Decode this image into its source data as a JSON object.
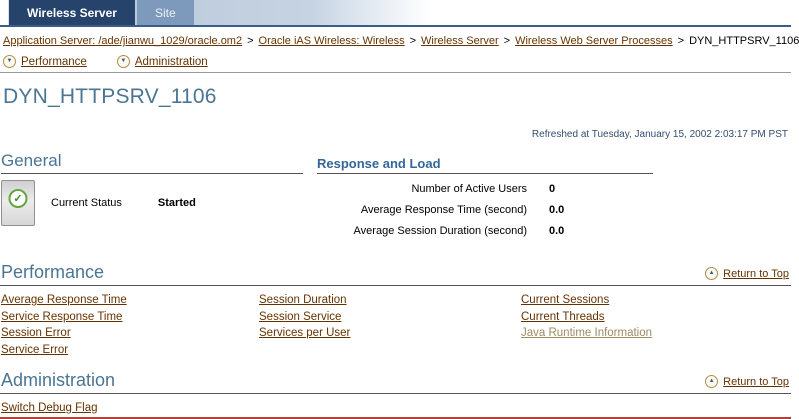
{
  "tabs": {
    "primary": "Wireless Server",
    "secondary": "Site"
  },
  "breadcrumb": {
    "separator": ">",
    "items": [
      {
        "label": "Application Server: /ade/jianwu_1029/oracle.om2"
      },
      {
        "label": "Oracle iAS Wireless: Wireless"
      },
      {
        "label": "Wireless Server"
      },
      {
        "label": "Wireless Web Server Processes"
      },
      {
        "label": "DYN_HTTPSRV_1106"
      }
    ]
  },
  "icons": {
    "down_arrow": "▼",
    "up_arrow": "▲",
    "check": "✓"
  },
  "quicklinks": [
    {
      "label": "Performance"
    },
    {
      "label": "Administration"
    }
  ],
  "page": {
    "title": "DYN_HTTPSRV_1106",
    "refreshed": "Refreshed at Tuesday, January 15, 2002 2:03:17 PM PST"
  },
  "general": {
    "heading": "General",
    "status_label": "Current Status",
    "status_value": "Started"
  },
  "response_load": {
    "heading": "Response and Load",
    "rows": [
      {
        "label": "Number of Active Users",
        "value": "0"
      },
      {
        "label": "Average Response Time (second)",
        "value": "0.0"
      },
      {
        "label": "Average Session Duration (second)",
        "value": "0.0"
      }
    ]
  },
  "performance": {
    "heading": "Performance",
    "return_to_top": "Return to Top",
    "col1": [
      "Average Response Time",
      "Service Response Time",
      "Session Error",
      "Service Error"
    ],
    "col2": [
      "Session Duration",
      "Session Service",
      "Services per User"
    ],
    "col3": [
      "Current Sessions",
      "Current Threads",
      "Java Runtime Information"
    ]
  },
  "administration": {
    "heading": "Administration",
    "return_to_top": "Return to Top",
    "links": [
      "Switch Debug Flag"
    ]
  },
  "colors": {
    "link": "#663300",
    "muted_link": "#9c8a63",
    "header_blue": "#4a7693",
    "tab_active": "#25436b",
    "tab_inactive": "#7d99bb",
    "status_green": "#63a53f",
    "bottom_rule": "#b04040"
  }
}
